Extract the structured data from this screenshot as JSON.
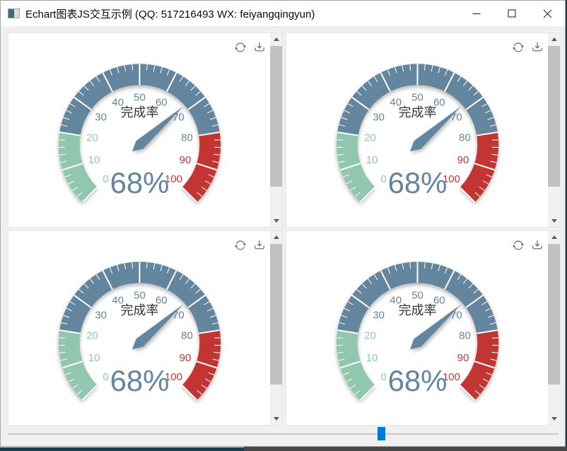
{
  "window": {
    "title": "Echart图表JS交互示例 (QQ: 517216493 WX: feiyangqingyun)",
    "controls": [
      "minimize",
      "maximize",
      "close"
    ]
  },
  "colors": {
    "segment_green": "#91c7ae",
    "segment_blue": "#63869e",
    "segment_red": "#c23531",
    "gauge_title": "#333333",
    "slider_accent": "#0078d7",
    "tick_color": "#ffffff"
  },
  "slider": {
    "value": 68,
    "min": 0,
    "max": 100
  },
  "panels": [
    {
      "id": 1,
      "toolbox": [
        "restore",
        "save-as-image"
      ]
    },
    {
      "id": 2,
      "toolbox": [
        "restore",
        "save-as-image"
      ]
    },
    {
      "id": 3,
      "toolbox": [
        "restore",
        "save-as-image"
      ]
    },
    {
      "id": 4,
      "toolbox": [
        "restore",
        "save-as-image"
      ]
    }
  ],
  "chart_data": [
    {
      "type": "gauge",
      "title": "完成率",
      "value": 68,
      "detail": "68%",
      "min": 0,
      "max": 100,
      "start_angle": 225,
      "end_angle": -45,
      "axis_ticks": [
        0,
        10,
        20,
        30,
        40,
        50,
        60,
        70,
        80,
        90,
        100
      ],
      "segments": [
        {
          "from": 0,
          "to": 20,
          "color": "#91c7ae"
        },
        {
          "from": 20,
          "to": 80,
          "color": "#63869e"
        },
        {
          "from": 80,
          "to": 100,
          "color": "#c23531"
        }
      ]
    },
    {
      "type": "gauge",
      "title": "完成率",
      "value": 68,
      "detail": "68%",
      "min": 0,
      "max": 100,
      "start_angle": 225,
      "end_angle": -45,
      "axis_ticks": [
        0,
        10,
        20,
        30,
        40,
        50,
        60,
        70,
        80,
        90,
        100
      ],
      "segments": [
        {
          "from": 0,
          "to": 20,
          "color": "#91c7ae"
        },
        {
          "from": 20,
          "to": 80,
          "color": "#63869e"
        },
        {
          "from": 80,
          "to": 100,
          "color": "#c23531"
        }
      ]
    },
    {
      "type": "gauge",
      "title": "完成率",
      "value": 68,
      "detail": "68%",
      "min": 0,
      "max": 100,
      "start_angle": 225,
      "end_angle": -45,
      "axis_ticks": [
        0,
        10,
        20,
        30,
        40,
        50,
        60,
        70,
        80,
        90,
        100
      ],
      "segments": [
        {
          "from": 0,
          "to": 20,
          "color": "#91c7ae"
        },
        {
          "from": 20,
          "to": 80,
          "color": "#63869e"
        },
        {
          "from": 80,
          "to": 100,
          "color": "#c23531"
        }
      ]
    },
    {
      "type": "gauge",
      "title": "完成率",
      "value": 68,
      "detail": "68%",
      "min": 0,
      "max": 100,
      "start_angle": 225,
      "end_angle": -45,
      "axis_ticks": [
        0,
        10,
        20,
        30,
        40,
        50,
        60,
        70,
        80,
        90,
        100
      ],
      "segments": [
        {
          "from": 0,
          "to": 20,
          "color": "#91c7ae"
        },
        {
          "from": 20,
          "to": 80,
          "color": "#63869e"
        },
        {
          "from": 80,
          "to": 100,
          "color": "#c23531"
        }
      ]
    }
  ]
}
